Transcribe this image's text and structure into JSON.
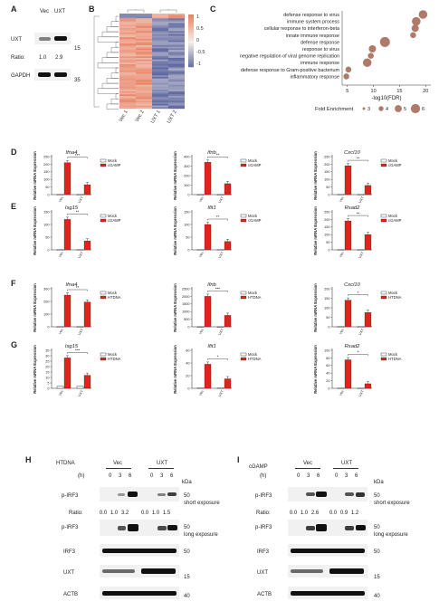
{
  "panels": {
    "A": "A",
    "B": "B",
    "C": "C",
    "D": "D",
    "E": "E",
    "F": "F",
    "G": "G",
    "H": "H",
    "I": "I"
  },
  "panelA": {
    "cols": [
      "Vec",
      "UXT"
    ],
    "rows": [
      "UXT",
      "GAPDH"
    ],
    "ratio_label": "Ratio:",
    "ratios": [
      "1.0",
      "2.9"
    ],
    "markers": [
      "15",
      "35"
    ]
  },
  "panelB": {
    "cols": [
      "Vec 1",
      "Vec 2",
      "UXT 1",
      "UXT 2"
    ],
    "scale": [
      "1",
      "0.5",
      "0",
      "-0.5",
      "-1"
    ]
  },
  "panelC": {
    "chart_data": {
      "type": "scatter",
      "categories": [
        "defense response to virus",
        "immune system process",
        "cellular response to interferon-beta",
        "innate immune response",
        "defense response",
        "response to virus",
        "negative regulation of viral genome replication",
        "immune response",
        "defense response to Gram-positive bacterium",
        "inflammatory response"
      ],
      "x": [
        19.5,
        18.2,
        18.0,
        17.6,
        12.2,
        9.8,
        9.5,
        8.8,
        5.2,
        4.8
      ],
      "size": [
        5,
        5,
        4,
        3,
        6,
        4,
        3,
        5,
        3,
        3
      ],
      "xlabel": "-log10(FDR)",
      "xticks": [
        5,
        10,
        15,
        20
      ],
      "xlim": [
        4,
        21
      ]
    },
    "legend_title": "Fold Enrichment",
    "legend_values": [
      "3",
      "4",
      "5",
      "6"
    ]
  },
  "ylab_rel": "Relative mRNA Expression",
  "xcat": [
    "Vec",
    "UXT"
  ],
  "legend_mock": "Mock",
  "legend_cgamp": "cGAMP",
  "legend_htdna": "HTDNA",
  "chart_data": [
    {
      "panel": "D",
      "title": "Ifna4",
      "type": "bar",
      "categories": [
        "Vec",
        "UXT"
      ],
      "series": [
        {
          "name": "Mock",
          "values": [
            1,
            1
          ]
        },
        {
          "name": "cGAMP",
          "values": [
            210,
            65
          ]
        }
      ],
      "ylim": [
        0,
        250
      ],
      "yticks": [
        0,
        50,
        100,
        150,
        200,
        250
      ],
      "sig": "***",
      "legend": "cGAMP"
    },
    {
      "panel": "D",
      "title": "Ifnb",
      "type": "bar",
      "categories": [
        "Vec",
        "UXT"
      ],
      "series": [
        {
          "name": "Mock",
          "values": [
            1,
            1
          ]
        },
        {
          "name": "cGAMP",
          "values": [
            340,
            115
          ]
        }
      ],
      "ylim": [
        0,
        400
      ],
      "yticks": [
        0,
        100,
        200,
        300,
        400
      ],
      "sig": "**",
      "legend": "cGAMP"
    },
    {
      "panel": "D",
      "title": "Cxcl10",
      "type": "bar",
      "categories": [
        "Vec",
        "UXT"
      ],
      "series": [
        {
          "name": "Mock",
          "values": [
            2,
            1
          ]
        },
        {
          "name": "cGAMP",
          "values": [
            190,
            60
          ]
        }
      ],
      "ylim": [
        0,
        250
      ],
      "yticks": [
        0,
        50,
        100,
        150,
        200,
        250
      ],
      "sig": "**",
      "legend": "cGAMP"
    },
    {
      "panel": "E",
      "title": "Isg15",
      "type": "bar",
      "categories": [
        "Vec",
        "UXT"
      ],
      "series": [
        {
          "name": "Mock",
          "values": [
            1,
            1
          ]
        },
        {
          "name": "cGAMP",
          "values": [
            120,
            35
          ]
        }
      ],
      "ylim": [
        0,
        150
      ],
      "yticks": [
        0,
        50,
        100,
        150
      ],
      "sig": "**",
      "legend": "cGAMP"
    },
    {
      "panel": "E",
      "title": "Ifit1",
      "type": "bar",
      "categories": [
        "Vec",
        "UXT"
      ],
      "series": [
        {
          "name": "Mock",
          "values": [
            1,
            1
          ]
        },
        {
          "name": "cGAMP",
          "values": [
            100,
            33
          ]
        }
      ],
      "ylim": [
        0,
        150
      ],
      "yticks": [
        0,
        50,
        100,
        150
      ],
      "sig": "**",
      "legend": "cGAMP"
    },
    {
      "panel": "E",
      "title": "Rsad2",
      "type": "bar",
      "categories": [
        "Vec",
        "UXT"
      ],
      "series": [
        {
          "name": "Mock",
          "values": [
            1,
            1
          ]
        },
        {
          "name": "cGAMP",
          "values": [
            190,
            100
          ]
        }
      ],
      "ylim": [
        0,
        250
      ],
      "yticks": [
        0,
        50,
        100,
        150,
        200,
        250
      ],
      "sig": "**",
      "legend": "cGAMP"
    },
    {
      "panel": "F",
      "title": "Ifna4",
      "type": "bar",
      "categories": [
        "Vec",
        "UXT"
      ],
      "series": [
        {
          "name": "Mock",
          "values": [
            1,
            1
          ]
        },
        {
          "name": "HTDNA",
          "values": [
            250,
            195
          ]
        }
      ],
      "ylim": [
        0,
        300
      ],
      "yticks": [
        0,
        100,
        200,
        300
      ],
      "sig": "**",
      "legend": "HTDNA"
    },
    {
      "panel": "F",
      "title": "Ifnb",
      "type": "bar",
      "categories": [
        "Vec",
        "UXT"
      ],
      "series": [
        {
          "name": "Mock",
          "values": [
            1,
            1
          ]
        },
        {
          "name": "HTDNA",
          "values": [
            2000,
            750
          ]
        }
      ],
      "ylim": [
        0,
        2500
      ],
      "yticks": [
        0,
        500,
        1000,
        1500,
        2000,
        2500
      ],
      "sig": "***",
      "legend": "HTDNA"
    },
    {
      "panel": "F",
      "title": "Cxcl10",
      "type": "bar",
      "categories": [
        "Vec",
        "UXT"
      ],
      "series": [
        {
          "name": "Mock",
          "values": [
            1,
            1
          ]
        },
        {
          "name": "HTDNA",
          "values": [
            140,
            75
          ]
        }
      ],
      "ylim": [
        0,
        200
      ],
      "yticks": [
        0,
        50,
        100,
        150,
        200
      ],
      "sig": "*",
      "legend": "HTDNA"
    },
    {
      "panel": "G",
      "title": "Isg15",
      "type": "bar",
      "categories": [
        "Vec",
        "UXT"
      ],
      "series": [
        {
          "name": "Mock",
          "values": [
            2,
            2
          ]
        },
        {
          "name": "HTDNA",
          "values": [
            28,
            12
          ]
        }
      ],
      "ylim": [
        0,
        35
      ],
      "yticks": [
        0,
        5,
        10,
        15,
        20,
        25,
        30,
        35
      ],
      "sig": "***",
      "legend": "HTDNA"
    },
    {
      "panel": "G",
      "title": "Ifit1",
      "type": "bar",
      "categories": [
        "Vec",
        "UXT"
      ],
      "series": [
        {
          "name": "Mock",
          "values": [
            1,
            1
          ]
        },
        {
          "name": "HTDNA",
          "values": [
            38,
            15
          ]
        }
      ],
      "ylim": [
        0,
        60
      ],
      "yticks": [
        0,
        20,
        40,
        60
      ],
      "sig": "*",
      "legend": "HTDNA"
    },
    {
      "panel": "G",
      "title": "Rsad2",
      "type": "bar",
      "categories": [
        "Vec",
        "UXT"
      ],
      "series": [
        {
          "name": "Mock",
          "values": [
            1,
            1
          ]
        },
        {
          "name": "HTDNA",
          "values": [
            75,
            12
          ]
        }
      ],
      "ylim": [
        0,
        100
      ],
      "yticks": [
        0,
        20,
        40,
        60,
        80,
        100
      ],
      "sig": "*",
      "legend": "HTDNA"
    }
  ],
  "panelH": {
    "treat": "HTDNA",
    "groups": [
      "Vec",
      "UXT"
    ],
    "h": "(h)",
    "times": [
      "0",
      "3",
      "6",
      "0",
      "3",
      "6"
    ],
    "kda": "kDa",
    "rows": [
      "p-IRF3",
      "p-IRF3",
      "IRF3",
      "UXT",
      "ACTB"
    ],
    "ratio_label": "Ratio:",
    "ratios": [
      "0.0",
      "1.0",
      "3.2",
      "0.0",
      "1.0",
      "1.5"
    ],
    "markers": [
      "50",
      "50",
      "50",
      "15",
      "40"
    ],
    "notes": [
      "short exposure",
      "long exposure"
    ]
  },
  "panelI": {
    "treat": "cGAMP",
    "groups": [
      "Vec",
      "UXT"
    ],
    "h": "(h)",
    "times": [
      "0",
      "3",
      "6",
      "0",
      "3",
      "6"
    ],
    "kda": "kDa",
    "rows": [
      "p-IRF3",
      "p-IRF3",
      "IRF3",
      "UXT",
      "ACTB"
    ],
    "ratio_label": "Ratio:",
    "ratios": [
      "0.0",
      "1.0",
      "2.6",
      "0.0",
      "0.9",
      "1.2"
    ],
    "markers": [
      "50",
      "50",
      "50",
      "15",
      "40"
    ],
    "notes": [
      "short exposure",
      "long exposure"
    ]
  }
}
